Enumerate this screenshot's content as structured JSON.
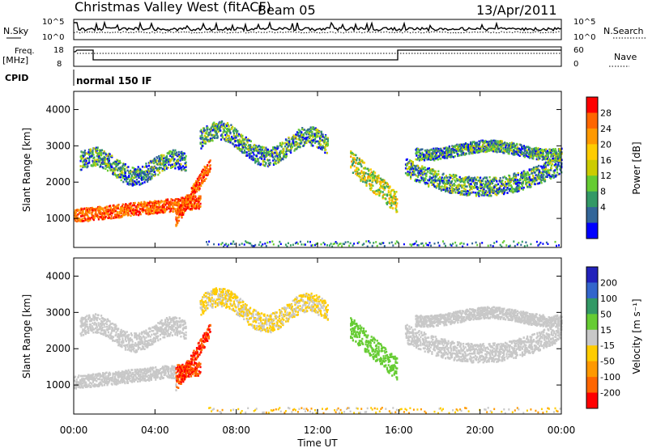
{
  "header": {
    "title": "Christmas Valley West (fitACF)",
    "beam": "Beam 05",
    "date": "13/Apr/2011"
  },
  "top_panels": {
    "nsky_label": "N.Sky",
    "nsearch_label": "N.Search",
    "left_ticks": [
      "10^5",
      "10^0"
    ],
    "right_ticks": [
      "10^5",
      "10^0"
    ],
    "freq_label_1": "Freq.",
    "freq_label_2": "[MHz]",
    "freq_ticks": [
      "18",
      "8"
    ],
    "nave_label": "Nave",
    "nave_ticks": [
      "60",
      "0"
    ],
    "cpid_label": "CPID",
    "cpid_value": "normal 150 IF"
  },
  "chart_data": [
    {
      "type": "heatmap",
      "panel": "power",
      "ylabel": "Slant Range [km]",
      "xlabel": "Time UT",
      "x_ticks": [
        "00:00",
        "04:00",
        "08:00",
        "12:00",
        "16:00",
        "20:00",
        "00:00"
      ],
      "x_range_hours": [
        0,
        24
      ],
      "y_ticks": [
        1000,
        2000,
        3000,
        4000
      ],
      "ylim": [
        200,
        4500
      ],
      "colorbar_label": "Power [dB]",
      "colorbar_ticks": [
        "28",
        "24",
        "20",
        "16",
        "12",
        "8",
        "4"
      ],
      "colorbar_colors": [
        "#ff0000",
        "#ff6600",
        "#ff9900",
        "#ffcc00",
        "#cccc00",
        "#66cc33",
        "#339966",
        "#336699",
        "#0000ff"
      ]
    },
    {
      "type": "heatmap",
      "panel": "velocity",
      "ylabel": "Slant Range [km]",
      "xlabel": "Time UT",
      "x_ticks": [
        "00:00",
        "04:00",
        "08:00",
        "12:00",
        "16:00",
        "20:00",
        "00:00"
      ],
      "x_range_hours": [
        0,
        24
      ],
      "y_ticks": [
        1000,
        2000,
        3000,
        4000
      ],
      "ylim": [
        200,
        4500
      ],
      "colorbar_label": "Velocity [m s⁻¹]",
      "colorbar_ticks": [
        "200",
        "100",
        "50",
        "15",
        "-15",
        "-50",
        "-100",
        "-200"
      ],
      "colorbar_colors": [
        "#2222bb",
        "#3366cc",
        "#339966",
        "#66cc33",
        "#c8c8c8",
        "#ffcc00",
        "#ff9900",
        "#ff6600",
        "#ff0000"
      ]
    }
  ],
  "x_axis_title": "Time UT"
}
